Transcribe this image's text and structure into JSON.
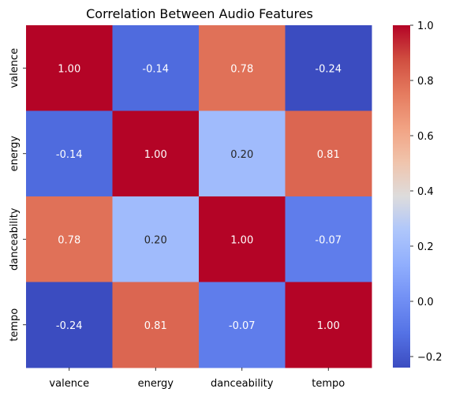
{
  "chart_data": {
    "type": "heatmap",
    "title": "Correlation Between Audio Features",
    "x_labels": [
      "valence",
      "energy",
      "danceability",
      "tempo"
    ],
    "y_labels": [
      "valence",
      "energy",
      "danceability",
      "tempo"
    ],
    "values": [
      [
        1.0,
        -0.14,
        0.78,
        -0.24
      ],
      [
        -0.14,
        1.0,
        0.2,
        0.81
      ],
      [
        0.78,
        0.2,
        1.0,
        -0.07
      ],
      [
        -0.24,
        0.81,
        -0.07,
        1.0
      ]
    ],
    "value_format": "2 decimals",
    "colormap": "coolwarm",
    "colorbar": {
      "vmin": -0.24,
      "vmax": 1.0,
      "ticks": [
        -0.2,
        0.0,
        0.2,
        0.4,
        0.6,
        0.8,
        1.0
      ],
      "tick_labels": [
        "−0.2",
        "0.0",
        "0.2",
        "0.4",
        "0.6",
        "0.8",
        "1.0"
      ]
    }
  }
}
